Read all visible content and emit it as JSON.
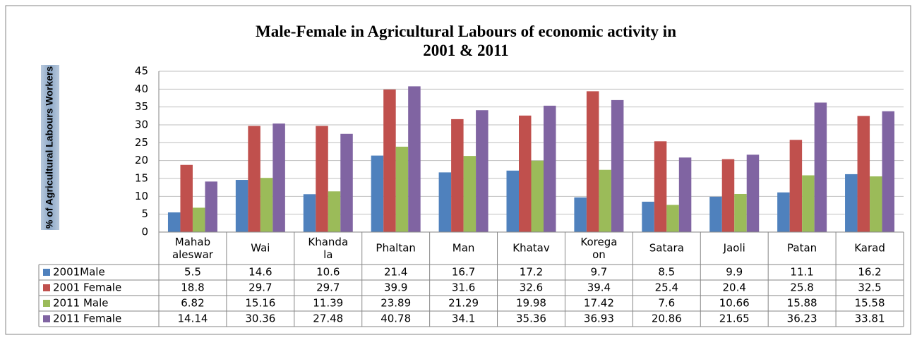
{
  "chart_data": {
    "type": "bar",
    "title": "Male-Female in Agricultural Labours of economic activity in 2001 & 2011",
    "y_label": "% of Agricultural Labours Workers",
    "categories": [
      "Mahab\naleswar",
      "Wai",
      "Khanda\nla",
      "Phaltan",
      "Man",
      "Khatav",
      "Korega\non",
      "Satara",
      "Jaoli",
      "Patan",
      "Karad"
    ],
    "series": [
      {
        "name": "2001Male",
        "color": "#4f81bd",
        "values": [
          5.5,
          14.6,
          10.6,
          21.4,
          16.7,
          17.2,
          9.7,
          8.5,
          9.9,
          11.1,
          16.2
        ]
      },
      {
        "name": "2001 Female",
        "color": "#c0504d",
        "values": [
          18.8,
          29.7,
          29.7,
          39.9,
          31.6,
          32.6,
          39.4,
          25.4,
          20.4,
          25.8,
          32.5
        ]
      },
      {
        "name": "2011 Male",
        "color": "#9bbb59",
        "values": [
          6.82,
          15.16,
          11.39,
          23.89,
          21.29,
          19.98,
          17.42,
          7.6,
          10.66,
          15.88,
          15.58
        ]
      },
      {
        "name": "2011 Female",
        "color": "#8064a2",
        "values": [
          14.14,
          30.36,
          27.48,
          40.78,
          34.1,
          35.36,
          36.93,
          20.86,
          21.65,
          36.23,
          33.81
        ]
      }
    ],
    "ylim": [
      0,
      45
    ],
    "yticks": [
      0,
      5,
      10,
      15,
      20,
      25,
      30,
      35,
      40,
      45
    ],
    "grid": true,
    "data_table": true
  }
}
